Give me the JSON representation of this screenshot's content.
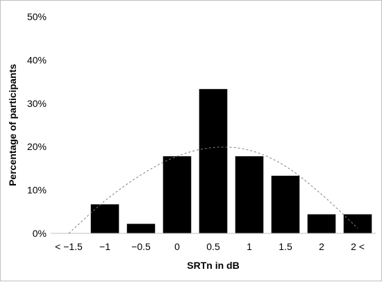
{
  "chart_data": {
    "type": "bar",
    "title": "",
    "xlabel": "SRTn in dB",
    "ylabel": "Percentage of participants",
    "categories": [
      "< −1.5",
      "−1",
      "−0.5",
      "0",
      "0.5",
      "1",
      "1.5",
      "2",
      "2 <"
    ],
    "values": [
      0,
      6.7,
      2.2,
      17.8,
      33.3,
      17.8,
      13.3,
      4.4,
      4.4
    ],
    "ylim": [
      0,
      50
    ],
    "yticks": [
      "0%",
      "10%",
      "20%",
      "30%",
      "40%",
      "50%"
    ],
    "grid": false,
    "bar_color": "#000000",
    "fit_curve": {
      "style": "dashed",
      "color": "#808080",
      "points": [
        [
          -1.5,
          0
        ],
        [
          -1,
          7.5
        ],
        [
          -0.5,
          13.5
        ],
        [
          0,
          17.8
        ],
        [
          0.5,
          19.8
        ],
        [
          1,
          19.2
        ],
        [
          1.5,
          15.5
        ],
        [
          2,
          9.0
        ],
        [
          2.5,
          1.2
        ]
      ]
    }
  }
}
